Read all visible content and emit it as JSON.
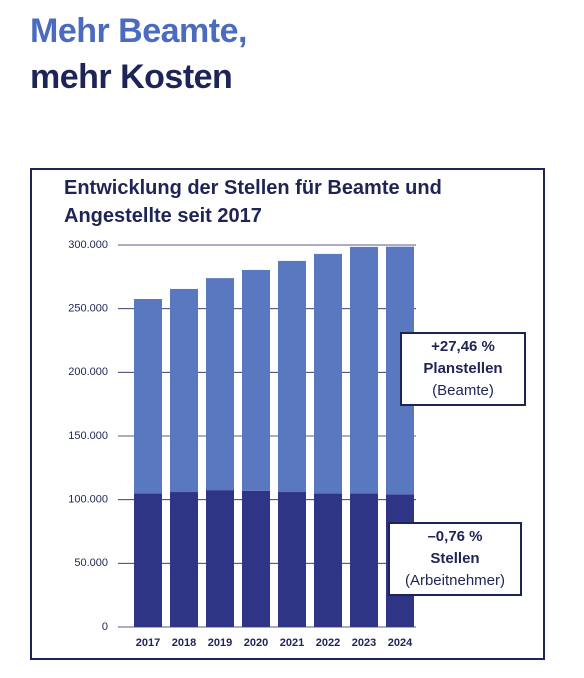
{
  "heading": [
    "Mehr Beamte,",
    "mehr Kosten"
  ],
  "chart_data": {
    "type": "stacked-bar",
    "title": "Entwicklung der Stellen für Beamte und Angestellte seit 2017",
    "categories": [
      "2017",
      "2018",
      "2019",
      "2020",
      "2021",
      "2022",
      "2023",
      "2024"
    ],
    "series": [
      {
        "color": "#2e3585",
        "values": [
          105000,
          106000,
          107500,
          107000,
          106000,
          105000,
          105000,
          104200
        ]
      },
      {
        "color": "#5a78c0",
        "values": [
          152600,
          159500,
          166500,
          173400,
          181500,
          188000,
          193500,
          194500
        ]
      }
    ],
    "ylim": [
      0,
      300000
    ],
    "yticks": [
      0,
      {
        "value": 50000,
        "label": "50.000"
      },
      {
        "value": 100000,
        "label": "100.000"
      },
      {
        "value": 150000,
        "label": "150.000"
      },
      {
        "value": 200000,
        "label": "200.000"
      },
      {
        "value": 250000,
        "label": "250.000"
      },
      {
        "value": 300000,
        "label": "300.000"
      }
    ],
    "grid": true,
    "annotations": [
      [
        "+27,46 %",
        "Planstellen",
        "(Beamte)"
      ],
      [
        "–0,76 %",
        "Stellen",
        "(Arbeitnehmer)"
      ]
    ]
  }
}
